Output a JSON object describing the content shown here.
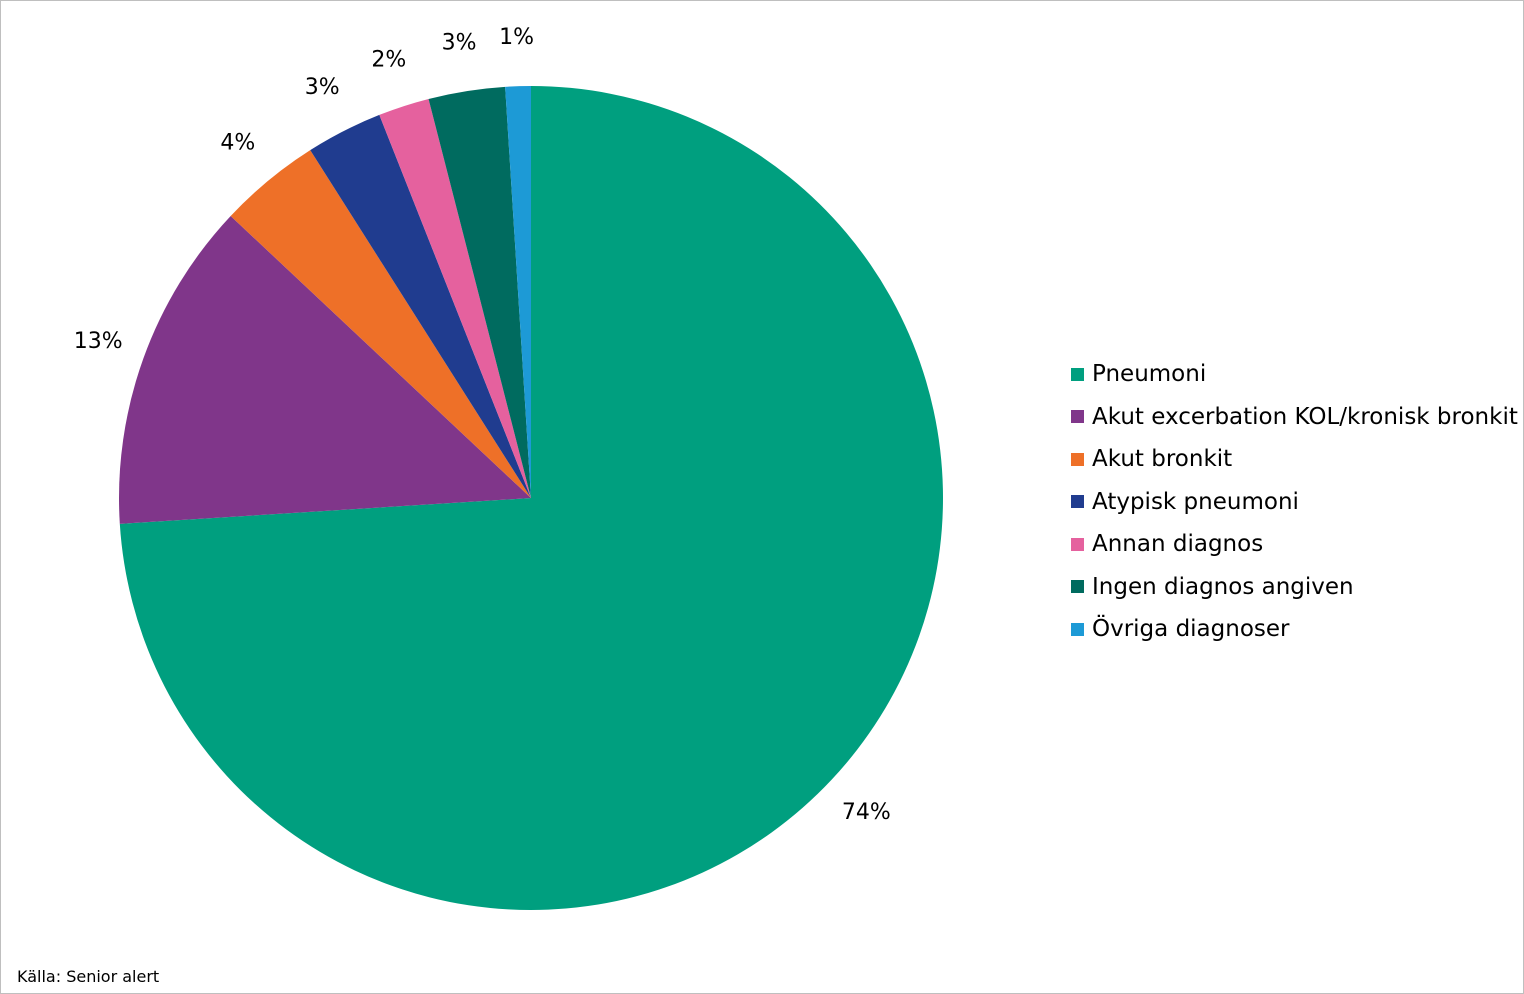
{
  "chart_data": {
    "type": "pie",
    "categories": [
      "Pneumoni",
      "Akut excerbation KOL/kronisk bronkit",
      "Akut bronkit",
      "Atypisk pneumoni",
      "Annan diagnos",
      "Ingen diagnos angiven",
      "Övriga diagnoser"
    ],
    "values": [
      74,
      13,
      4,
      3,
      2,
      3,
      1
    ],
    "data_labels": [
      "74%",
      "13%",
      "4%",
      "3%",
      "2%",
      "3%",
      "1%"
    ],
    "colors": [
      "#009f7f",
      "#80368a",
      "#ee7028",
      "#203c8f",
      "#e5619e",
      "#006b5f",
      "#1d9ad6"
    ],
    "start_angle": "12 o'clock",
    "direction": "clockwise",
    "legend_position": "right"
  },
  "footer": {
    "source": "Källa: Senior alert"
  }
}
